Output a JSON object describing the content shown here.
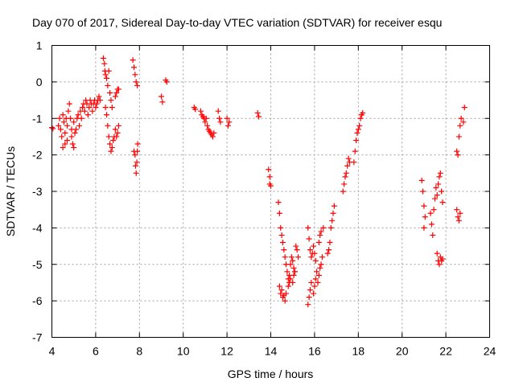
{
  "chart_data": {
    "type": "scatter",
    "title": "Day 070 of 2017, Sidereal Day-to-day VTEC variation (SDTVAR) for receiver esqu",
    "xlabel": "GPS time / hours",
    "ylabel": "SDTVAR / TECUs",
    "xlim": [
      4,
      24
    ],
    "ylim": [
      -7,
      1
    ],
    "xticks": [
      4,
      6,
      8,
      10,
      12,
      14,
      16,
      18,
      20,
      22,
      24
    ],
    "yticks": [
      1,
      0,
      -1,
      -2,
      -3,
      -4,
      -5,
      -6,
      -7
    ],
    "grid": true,
    "marker": "+",
    "color": "#ff0000",
    "series": [
      {
        "name": "SDTVAR",
        "points": [
          [
            4.0,
            -1.25
          ],
          [
            4.05,
            -1.28
          ],
          [
            4.3,
            -1.2
          ],
          [
            4.35,
            -1.0
          ],
          [
            4.4,
            -1.3
          ],
          [
            4.45,
            -1.5
          ],
          [
            4.5,
            -1.8
          ],
          [
            4.5,
            -0.9
          ],
          [
            4.55,
            -1.1
          ],
          [
            4.6,
            -1.4
          ],
          [
            4.6,
            -1.7
          ],
          [
            4.65,
            -1.0
          ],
          [
            4.7,
            -1.2
          ],
          [
            4.7,
            -1.6
          ],
          [
            4.75,
            -0.8
          ],
          [
            4.8,
            -0.6
          ],
          [
            4.85,
            -1.0
          ],
          [
            4.9,
            -1.3
          ],
          [
            4.9,
            -1.5
          ],
          [
            4.95,
            -1.7
          ],
          [
            5.0,
            -1.8
          ],
          [
            5.0,
            -1.1
          ],
          [
            5.05,
            -1.4
          ],
          [
            5.1,
            -1.3
          ],
          [
            5.15,
            -1.0
          ],
          [
            5.2,
            -0.9
          ],
          [
            5.25,
            -1.2
          ],
          [
            5.3,
            -0.8
          ],
          [
            5.35,
            -1.0
          ],
          [
            5.4,
            -0.7
          ],
          [
            5.45,
            -0.6
          ],
          [
            5.5,
            -0.8
          ],
          [
            5.55,
            -0.5
          ],
          [
            5.6,
            -0.6
          ],
          [
            5.65,
            -0.9
          ],
          [
            5.7,
            -0.7
          ],
          [
            5.75,
            -0.5
          ],
          [
            5.8,
            -0.6
          ],
          [
            5.85,
            -0.8
          ],
          [
            5.9,
            -0.6
          ],
          [
            5.95,
            -0.5
          ],
          [
            6.0,
            -0.7
          ],
          [
            6.05,
            -0.6
          ],
          [
            6.1,
            -0.5
          ],
          [
            6.15,
            -0.4
          ],
          [
            6.2,
            -0.5
          ],
          [
            6.35,
            0.65
          ],
          [
            6.4,
            0.5
          ],
          [
            6.42,
            0.3
          ],
          [
            6.45,
            0.2
          ],
          [
            6.5,
            0.1
          ],
          [
            6.55,
            -0.1
          ],
          [
            6.6,
            0.3
          ],
          [
            6.65,
            -0.3
          ],
          [
            6.7,
            -0.5
          ],
          [
            6.75,
            -0.7
          ],
          [
            6.45,
            -0.7
          ],
          [
            6.5,
            -0.9
          ],
          [
            6.55,
            -1.2
          ],
          [
            6.6,
            -1.5
          ],
          [
            6.65,
            -1.7
          ],
          [
            6.7,
            -1.9
          ],
          [
            6.75,
            -1.8
          ],
          [
            6.8,
            -1.6
          ],
          [
            6.85,
            -1.5
          ],
          [
            6.9,
            -1.3
          ],
          [
            6.95,
            -1.5
          ],
          [
            7.0,
            -1.4
          ],
          [
            7.05,
            -1.2
          ],
          [
            6.9,
            -0.4
          ],
          [
            6.95,
            -0.3
          ],
          [
            7.0,
            -0.2
          ],
          [
            7.05,
            -0.2
          ],
          [
            7.7,
            0.6
          ],
          [
            7.75,
            0.4
          ],
          [
            7.8,
            0.2
          ],
          [
            7.85,
            0.0
          ],
          [
            7.9,
            -0.1
          ],
          [
            7.75,
            -1.9
          ],
          [
            7.8,
            -2.0
          ],
          [
            7.82,
            -2.3
          ],
          [
            7.85,
            -2.5
          ],
          [
            7.88,
            -2.2
          ],
          [
            7.9,
            -1.9
          ],
          [
            7.92,
            -1.7
          ],
          [
            9.0,
            -0.4
          ],
          [
            9.05,
            -0.55
          ],
          [
            9.2,
            0.05
          ],
          [
            9.25,
            0.0
          ],
          [
            10.5,
            -0.7
          ],
          [
            10.55,
            -0.75
          ],
          [
            10.8,
            -0.8
          ],
          [
            10.85,
            -0.9
          ],
          [
            10.9,
            -0.95
          ],
          [
            10.95,
            -1.0
          ],
          [
            11.0,
            -1.1
          ],
          [
            11.05,
            -1.0
          ],
          [
            11.1,
            -1.2
          ],
          [
            11.15,
            -1.3
          ],
          [
            11.2,
            -1.35
          ],
          [
            11.25,
            -1.4
          ],
          [
            11.3,
            -1.45
          ],
          [
            11.35,
            -1.5
          ],
          [
            11.4,
            -1.4
          ],
          [
            11.6,
            -0.8
          ],
          [
            11.65,
            -1.0
          ],
          [
            11.7,
            -1.1
          ],
          [
            12.0,
            -1.0
          ],
          [
            12.05,
            -1.2
          ],
          [
            12.1,
            -1.1
          ],
          [
            13.4,
            -0.85
          ],
          [
            13.45,
            -0.95
          ],
          [
            13.9,
            -2.4
          ],
          [
            13.95,
            -2.6
          ],
          [
            13.95,
            -2.8
          ],
          [
            14.0,
            -2.85
          ],
          [
            14.35,
            -3.3
          ],
          [
            14.4,
            -3.6
          ],
          [
            14.45,
            -4.0
          ],
          [
            14.5,
            -4.2
          ],
          [
            14.55,
            -4.4
          ],
          [
            14.6,
            -4.6
          ],
          [
            14.65,
            -4.8
          ],
          [
            14.7,
            -5.0
          ],
          [
            14.75,
            -5.2
          ],
          [
            14.8,
            -5.4
          ],
          [
            14.85,
            -5.3
          ],
          [
            14.9,
            -5.0
          ],
          [
            14.95,
            -4.8
          ],
          [
            15.0,
            -4.9
          ],
          [
            15.05,
            -5.1
          ],
          [
            15.1,
            -5.2
          ],
          [
            15.15,
            -4.5
          ],
          [
            15.2,
            -4.6
          ],
          [
            15.25,
            -4.8
          ],
          [
            14.4,
            -5.6
          ],
          [
            14.45,
            -5.8
          ],
          [
            14.5,
            -5.7
          ],
          [
            14.55,
            -5.9
          ],
          [
            14.6,
            -5.85
          ],
          [
            14.65,
            -6.0
          ],
          [
            14.7,
            -5.8
          ],
          [
            14.8,
            -5.6
          ],
          [
            14.85,
            -5.5
          ],
          [
            14.9,
            -5.4
          ],
          [
            15.0,
            -5.5
          ],
          [
            15.05,
            -5.3
          ],
          [
            15.1,
            -5.2
          ],
          [
            15.7,
            -6.1
          ],
          [
            15.75,
            -5.9
          ],
          [
            15.8,
            -5.7
          ],
          [
            15.85,
            -5.5
          ],
          [
            15.7,
            -4.0
          ],
          [
            15.75,
            -4.3
          ],
          [
            15.8,
            -4.6
          ],
          [
            15.85,
            -4.8
          ],
          [
            15.9,
            -4.7
          ],
          [
            15.95,
            -4.5
          ],
          [
            16.0,
            -4.7
          ],
          [
            16.05,
            -4.9
          ],
          [
            15.95,
            -5.8
          ],
          [
            16.0,
            -5.6
          ],
          [
            16.05,
            -5.4
          ],
          [
            16.1,
            -5.2
          ],
          [
            16.15,
            -5.5
          ],
          [
            16.2,
            -5.3
          ],
          [
            16.25,
            -5.1
          ],
          [
            16.3,
            -5.0
          ],
          [
            16.35,
            -4.8
          ],
          [
            16.2,
            -4.4
          ],
          [
            16.25,
            -4.2
          ],
          [
            16.3,
            -4.1
          ],
          [
            16.4,
            -4.0
          ],
          [
            16.6,
            -4.7
          ],
          [
            16.65,
            -4.6
          ],
          [
            16.7,
            -4.4
          ],
          [
            16.75,
            -4.0
          ],
          [
            16.8,
            -3.8
          ],
          [
            16.85,
            -3.6
          ],
          [
            16.9,
            -3.4
          ],
          [
            17.3,
            -3.0
          ],
          [
            17.35,
            -2.8
          ],
          [
            17.4,
            -2.6
          ],
          [
            17.45,
            -2.5
          ],
          [
            17.5,
            -2.3
          ],
          [
            17.55,
            -2.1
          ],
          [
            17.6,
            -2.2
          ],
          [
            17.8,
            -2.2
          ],
          [
            17.85,
            -1.9
          ],
          [
            17.9,
            -1.6
          ],
          [
            17.95,
            -1.4
          ],
          [
            18.0,
            -1.3
          ],
          [
            18.05,
            -1.2
          ],
          [
            18.1,
            -1.0
          ],
          [
            18.15,
            -0.9
          ],
          [
            18.2,
            -0.85
          ],
          [
            20.9,
            -2.7
          ],
          [
            20.95,
            -3.0
          ],
          [
            21.0,
            -3.4
          ],
          [
            21.0,
            -4.0
          ],
          [
            21.05,
            -3.7
          ],
          [
            21.3,
            -3.6
          ],
          [
            21.35,
            -3.9
          ],
          [
            21.4,
            -4.2
          ],
          [
            21.45,
            -3.5
          ],
          [
            21.5,
            -3.2
          ],
          [
            21.55,
            -2.9
          ],
          [
            21.6,
            -3.1
          ],
          [
            21.65,
            -2.8
          ],
          [
            21.7,
            -2.6
          ],
          [
            21.75,
            -2.5
          ],
          [
            21.8,
            -3.0
          ],
          [
            21.85,
            -3.3
          ],
          [
            21.6,
            -4.7
          ],
          [
            21.65,
            -4.9
          ],
          [
            21.7,
            -5.0
          ],
          [
            21.75,
            -4.8
          ],
          [
            21.8,
            -4.9
          ],
          [
            21.85,
            -4.85
          ],
          [
            22.5,
            -1.9
          ],
          [
            22.55,
            -2.0
          ],
          [
            22.6,
            -1.5
          ],
          [
            22.65,
            -1.2
          ],
          [
            22.7,
            -1.0
          ],
          [
            22.5,
            -3.5
          ],
          [
            22.55,
            -3.7
          ],
          [
            22.6,
            -3.8
          ],
          [
            22.65,
            -3.6
          ],
          [
            22.8,
            -1.1
          ],
          [
            22.85,
            -0.7
          ]
        ]
      }
    ]
  }
}
